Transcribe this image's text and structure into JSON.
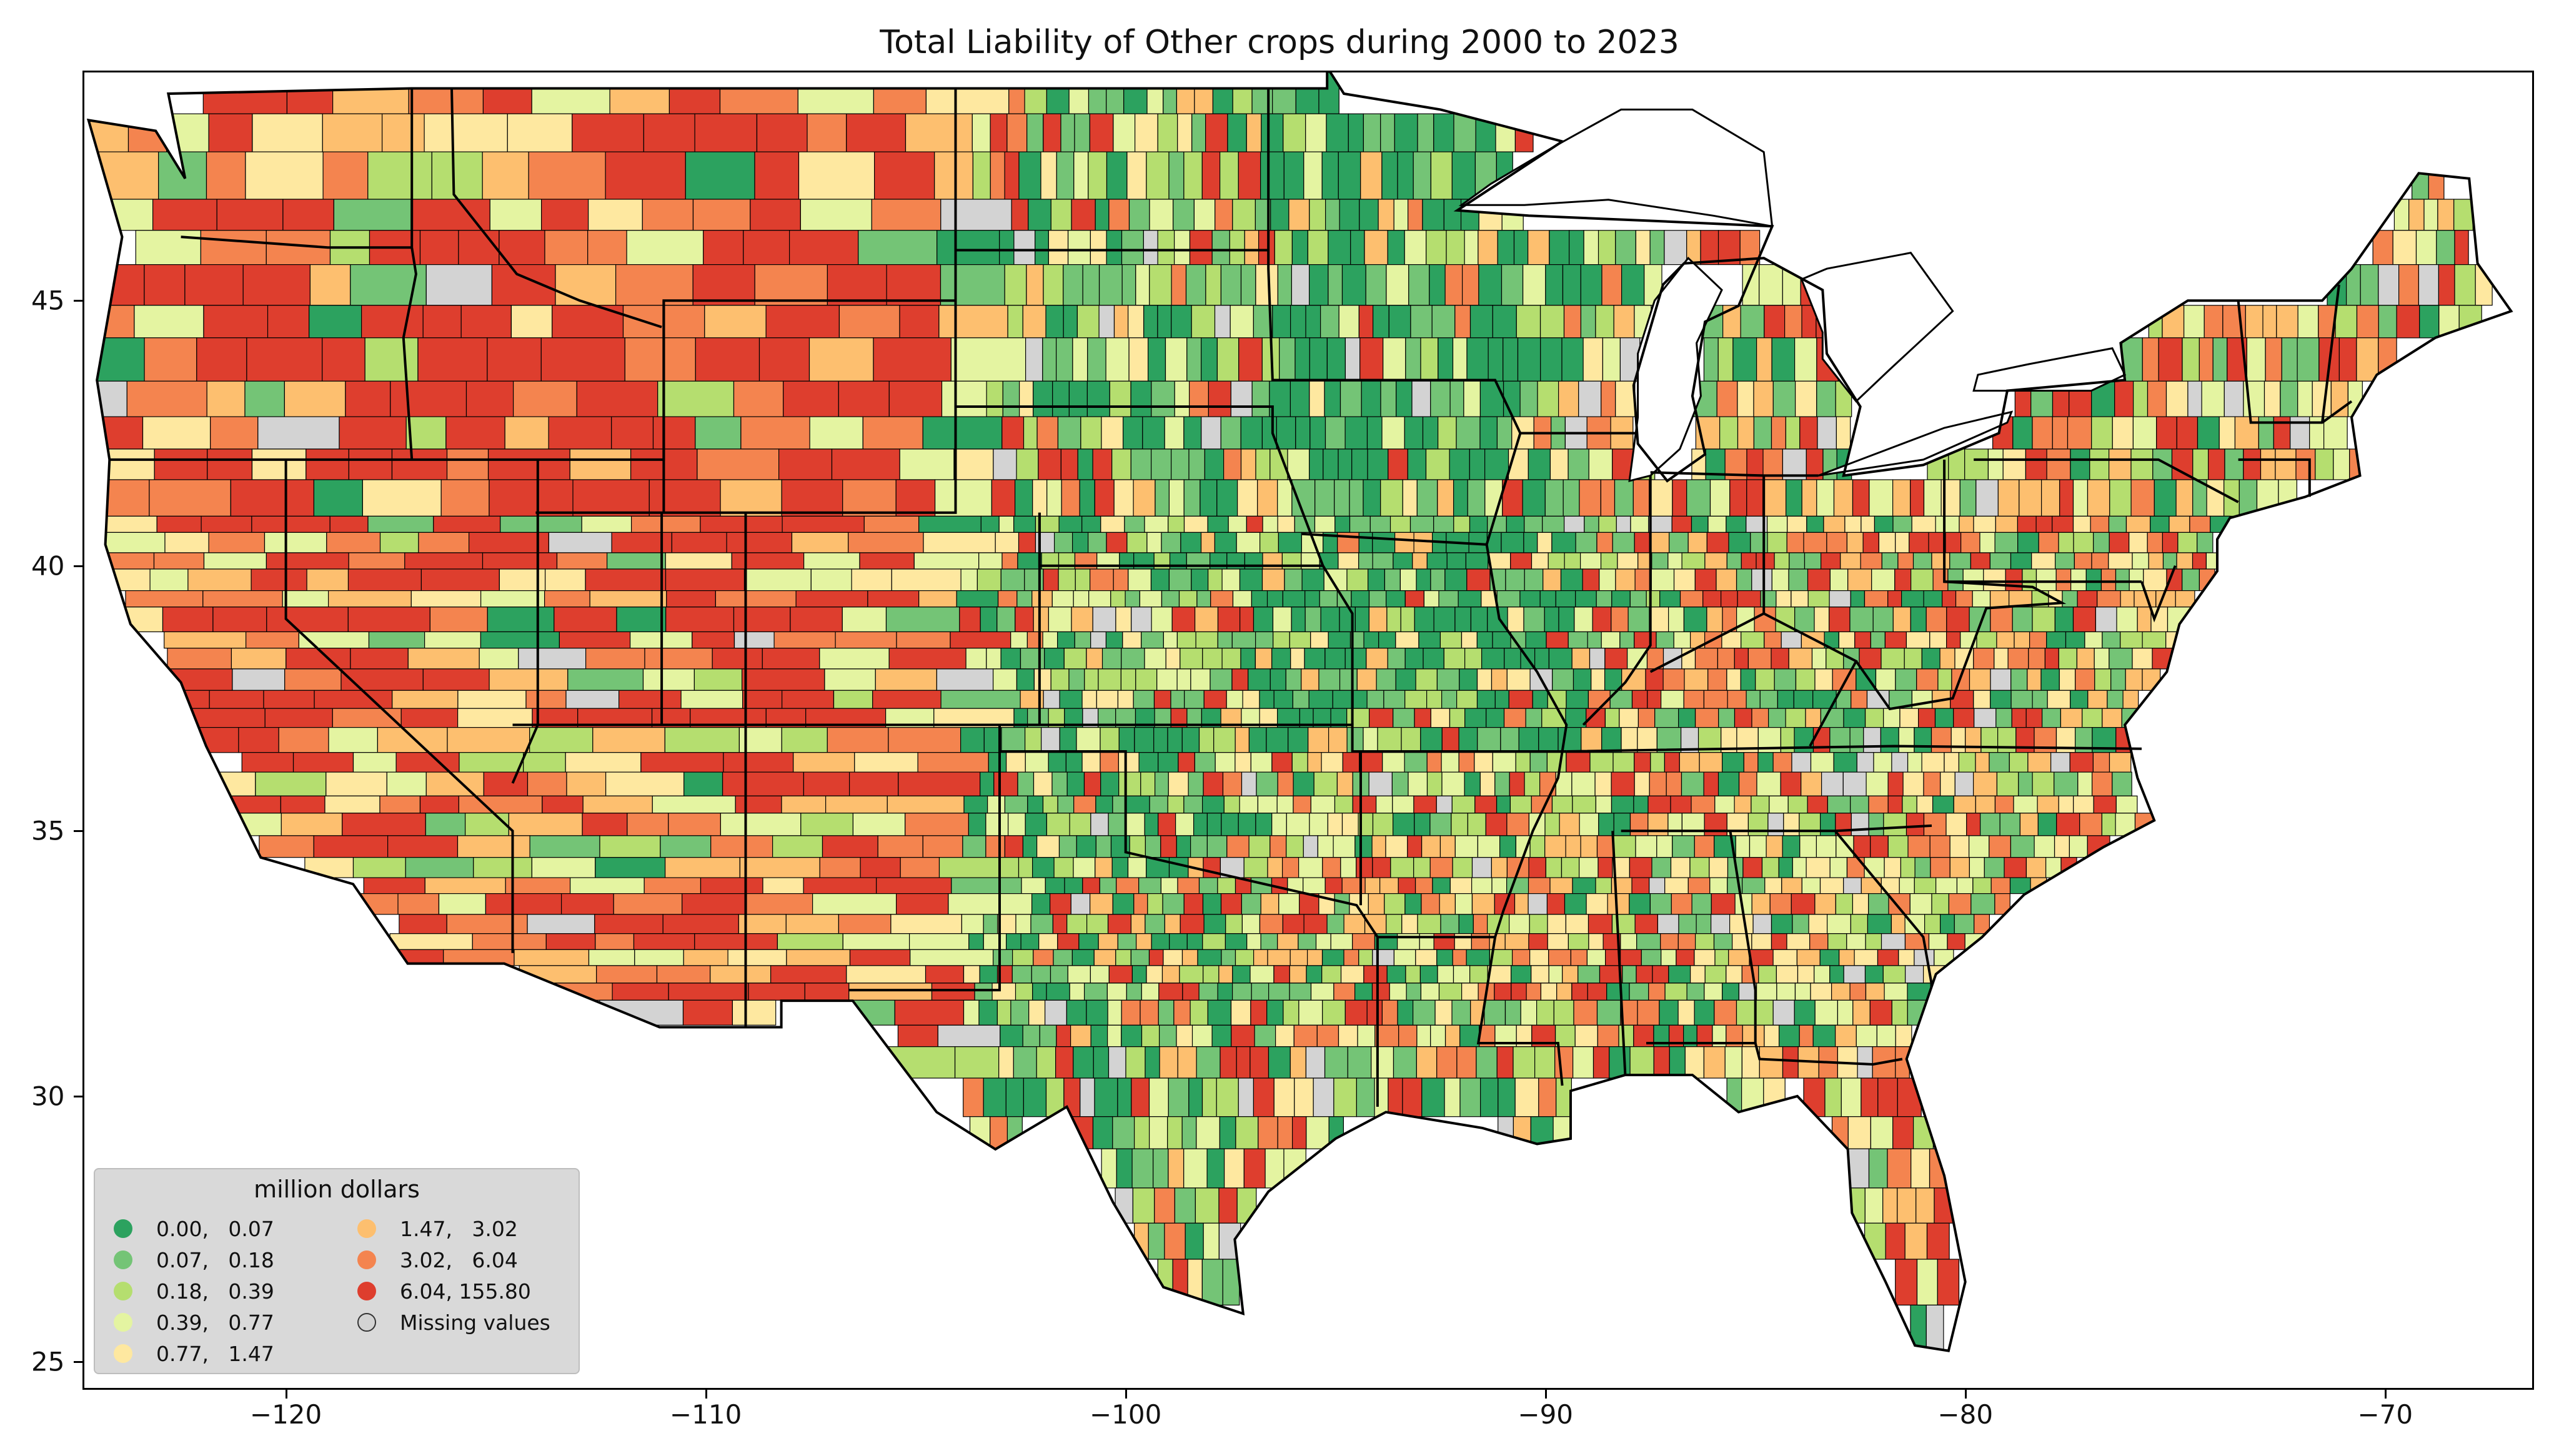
{
  "title": "Total Liability of Other crops during 2000 to 2023",
  "axes": {
    "x_ticks": [
      "−120",
      "−110",
      "−100",
      "−90",
      "−80",
      "−70"
    ],
    "x_values": [
      -120,
      -110,
      -100,
      -90,
      -80,
      -70
    ],
    "y_ticks": [
      "45",
      "40",
      "35",
      "30",
      "25"
    ],
    "y_values": [
      45,
      40,
      35,
      30,
      25
    ],
    "xlim": [
      -124.8,
      -66.5
    ],
    "ylim": [
      24.5,
      49.3
    ]
  },
  "legend": {
    "title": "million dollars",
    "placement": "bottom-left",
    "items": [
      {
        "label": "0.00,   0.07",
        "color": "#2ca25f"
      },
      {
        "label": "0.07,   0.18",
        "color": "#74c476"
      },
      {
        "label": "0.18,   0.39",
        "color": "#b5de6f"
      },
      {
        "label": "0.39,   0.77",
        "color": "#e4f4a1"
      },
      {
        "label": "0.77,   1.47",
        "color": "#fee8a0"
      },
      {
        "label": "1.47,   3.02",
        "color": "#fdbf6f"
      },
      {
        "label": "3.02,   6.04",
        "color": "#f4844f"
      },
      {
        "label": "6.04, 155.80",
        "color": "#de3e2e"
      },
      {
        "label": "Missing values",
        "color": "#d3d3d3"
      }
    ]
  }
}
